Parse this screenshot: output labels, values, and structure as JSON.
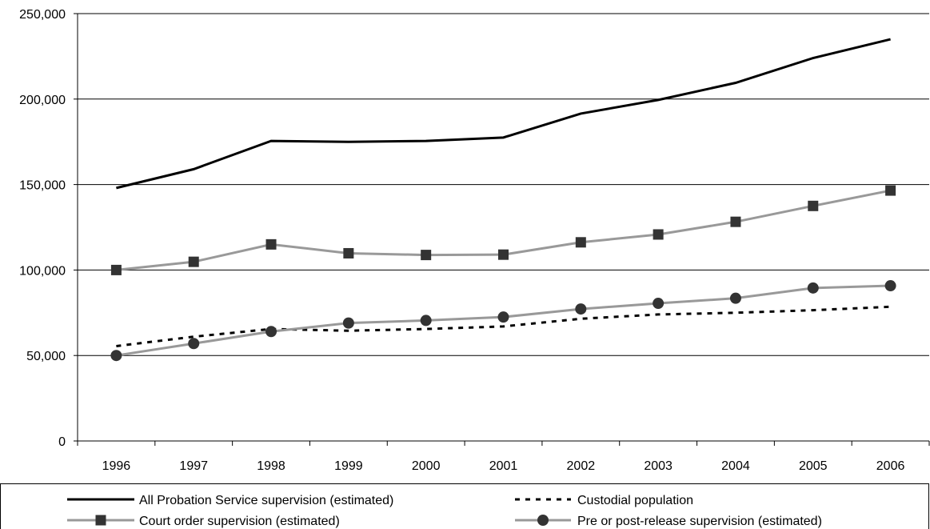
{
  "chart_data": {
    "type": "line",
    "title": "",
    "xlabel": "",
    "ylabel": "",
    "x": [
      "1996",
      "1997",
      "1998",
      "1999",
      "2000",
      "2001",
      "2002",
      "2003",
      "2004",
      "2005",
      "2006"
    ],
    "ylim": [
      0,
      250000
    ],
    "yticks": [
      "0",
      "50,000",
      "100,000",
      "150,000",
      "200,000",
      "250,000"
    ],
    "grid": true,
    "legend_position": "bottom",
    "series": [
      {
        "name": "All Probation Service supervision (estimated)",
        "style": "solid",
        "color": "#000000",
        "marker": "none",
        "values": [
          148000,
          159000,
          175500,
          175000,
          175500,
          177500,
          191500,
          199500,
          209500,
          224000,
          235000
        ]
      },
      {
        "name": "Custodial population",
        "style": "dashed",
        "color": "#000000",
        "marker": "none",
        "values": [
          55500,
          61000,
          65500,
          64500,
          65500,
          67000,
          71500,
          74000,
          75000,
          76500,
          78500
        ]
      },
      {
        "name": "Court order supervision (estimated)",
        "style": "solid",
        "color": "#999999",
        "marker": "square",
        "marker_color": "#333333",
        "values": [
          100000,
          104800,
          115000,
          109800,
          108800,
          109000,
          116200,
          120800,
          128200,
          137500,
          146500
        ]
      },
      {
        "name": "Pre or post-release supervision (estimated)",
        "style": "solid",
        "color": "#999999",
        "marker": "circle",
        "marker_color": "#333333",
        "values": [
          50000,
          57000,
          64000,
          69000,
          70500,
          72500,
          77200,
          80500,
          83500,
          89500,
          90800
        ]
      }
    ]
  }
}
